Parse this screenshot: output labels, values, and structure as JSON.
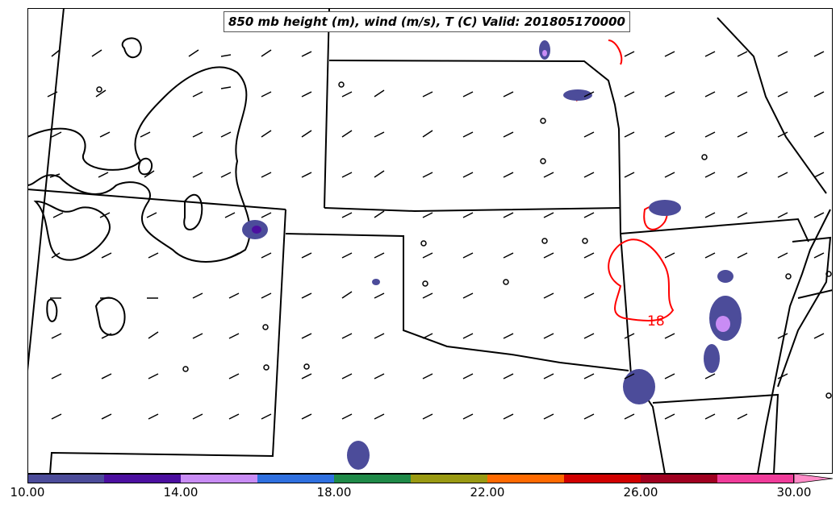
{
  "title": "850 mb height (m), wind (m/s), T (C) Valid: 201805170000",
  "contour_label": "18",
  "colorbar": {
    "colors": [
      "#4c4c9a",
      "#4c0fa0",
      "#c98cf5",
      "#2f70e0",
      "#1f8a48",
      "#9a9a12",
      "#ff6a00",
      "#d10000",
      "#a00020",
      "#f03c9a",
      "#ff8cc8"
    ],
    "ticks": [
      "10.00",
      "14.00",
      "18.00",
      "22.00",
      "26.00",
      "30.00"
    ]
  },
  "colors": {
    "border": "#000000",
    "contour": "#ff0000",
    "precip_dark": "#4c4c9a",
    "precip_light": "#c98cf5"
  }
}
